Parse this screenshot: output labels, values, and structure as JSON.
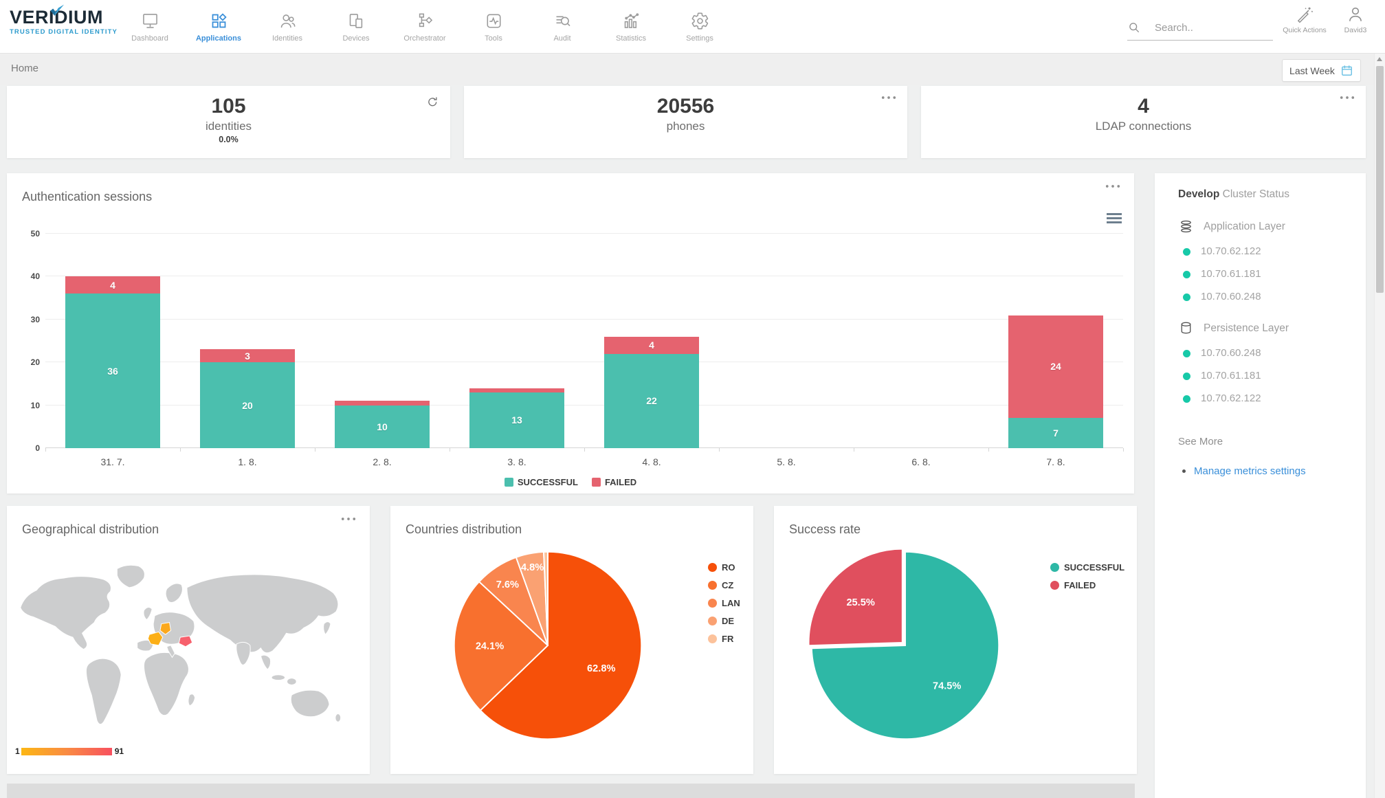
{
  "brand": {
    "name": "VERIDIUM",
    "tagline": "TRUSTED DIGITAL IDENTITY"
  },
  "nav": {
    "items": [
      {
        "label": "Dashboard",
        "icon": "dashboard-icon",
        "active": false
      },
      {
        "label": "Applications",
        "icon": "applications-icon",
        "active": true
      },
      {
        "label": "Identities",
        "icon": "identities-icon",
        "active": false
      },
      {
        "label": "Devices",
        "icon": "devices-icon",
        "active": false
      },
      {
        "label": "Orchestrator",
        "icon": "orchestrator-icon",
        "active": false
      },
      {
        "label": "Tools",
        "icon": "tools-icon",
        "active": false
      },
      {
        "label": "Audit",
        "icon": "audit-icon",
        "active": false
      },
      {
        "label": "Statistics",
        "icon": "statistics-icon",
        "active": false
      },
      {
        "label": "Settings",
        "icon": "settings-icon",
        "active": false
      }
    ]
  },
  "topbar": {
    "search_placeholder": "Search..",
    "quick_actions": "Quick Actions",
    "user": "David3"
  },
  "breadcrumb": "Home",
  "period_button": "Last Week",
  "stat_cards": [
    {
      "value": "105",
      "label": "identities",
      "sub": "0.0%",
      "action_icon": "refresh-icon"
    },
    {
      "value": "20556",
      "label": "phones",
      "sub": null,
      "action_icon": "menu-dots-icon"
    },
    {
      "value": "4",
      "label": "LDAP connections",
      "sub": null,
      "action_icon": "menu-dots-icon"
    }
  ],
  "chart_data": [
    {
      "id": "auth_sessions",
      "type": "bar",
      "stacked": true,
      "title": "Authentication sessions",
      "categories": [
        "31. 7.",
        "1. 8.",
        "2. 8.",
        "3. 8.",
        "4. 8.",
        "5. 8.",
        "6. 8.",
        "7. 8."
      ],
      "series": [
        {
          "name": "SUCCESSFUL",
          "color": "#4bbfae",
          "values": [
            36,
            20,
            10,
            13,
            22,
            0,
            0,
            7
          ]
        },
        {
          "name": "FAILED",
          "color": "#e5636f",
          "values": [
            4,
            3,
            1,
            1,
            4,
            0,
            0,
            24
          ]
        }
      ],
      "ylim": [
        0,
        50
      ],
      "yticks": [
        0,
        10,
        20,
        30,
        40,
        50
      ],
      "grid": true,
      "legend_position": "bottom",
      "label_min": 3
    },
    {
      "id": "countries_distribution",
      "type": "pie",
      "title": "Countries distribution",
      "labels": [
        "RO",
        "CZ",
        "LAN",
        "DE",
        "FR"
      ],
      "values": [
        62.8,
        24.1,
        7.6,
        4.8,
        0.7
      ],
      "display_labels": [
        "62.8%",
        "24.1%",
        "7.6%",
        "4.8%",
        ""
      ],
      "colors": [
        "#f65009",
        "#f8702e",
        "#f9854e",
        "#faa172",
        "#fcc29b"
      ],
      "explode": [
        0,
        0,
        0,
        0,
        0
      ],
      "legend_position": "right",
      "label_min": 2
    },
    {
      "id": "success_rate",
      "type": "pie",
      "title": "Success rate",
      "labels": [
        "SUCCESSFUL",
        "FAILED"
      ],
      "values": [
        74.5,
        25.5
      ],
      "display_labels": [
        "74.5%",
        "25.5%"
      ],
      "colors": [
        "#2eb8a6",
        "#e04f5e"
      ],
      "explode": [
        0,
        6
      ],
      "legend_position": "right",
      "label_min": 2
    },
    {
      "id": "geo_map",
      "type": "map",
      "title": "Geographical distribution",
      "scale": {
        "min": "1",
        "max": "91"
      },
      "highlighted": [
        {
          "code": "FR",
          "color": "#fcaf17"
        },
        {
          "code": "DE",
          "color": "#fba81d"
        },
        {
          "code": "RO",
          "color": "#f7616d"
        }
      ]
    }
  ],
  "cluster_panel": {
    "title_strong": "Develop",
    "title_rest": " Cluster Status",
    "node_dot_color": "#17c9a8",
    "sections": [
      {
        "label": "Application Layer",
        "icon": "layers-icon",
        "nodes": [
          "10.70.62.122",
          "10.70.61.181",
          "10.70.60.248"
        ]
      },
      {
        "label": "Persistence Layer",
        "icon": "database-icon",
        "nodes": [
          "10.70.60.248",
          "10.70.61.181",
          "10.70.62.122"
        ]
      }
    ],
    "see_more": "See More",
    "manage_link": "Manage metrics settings"
  }
}
